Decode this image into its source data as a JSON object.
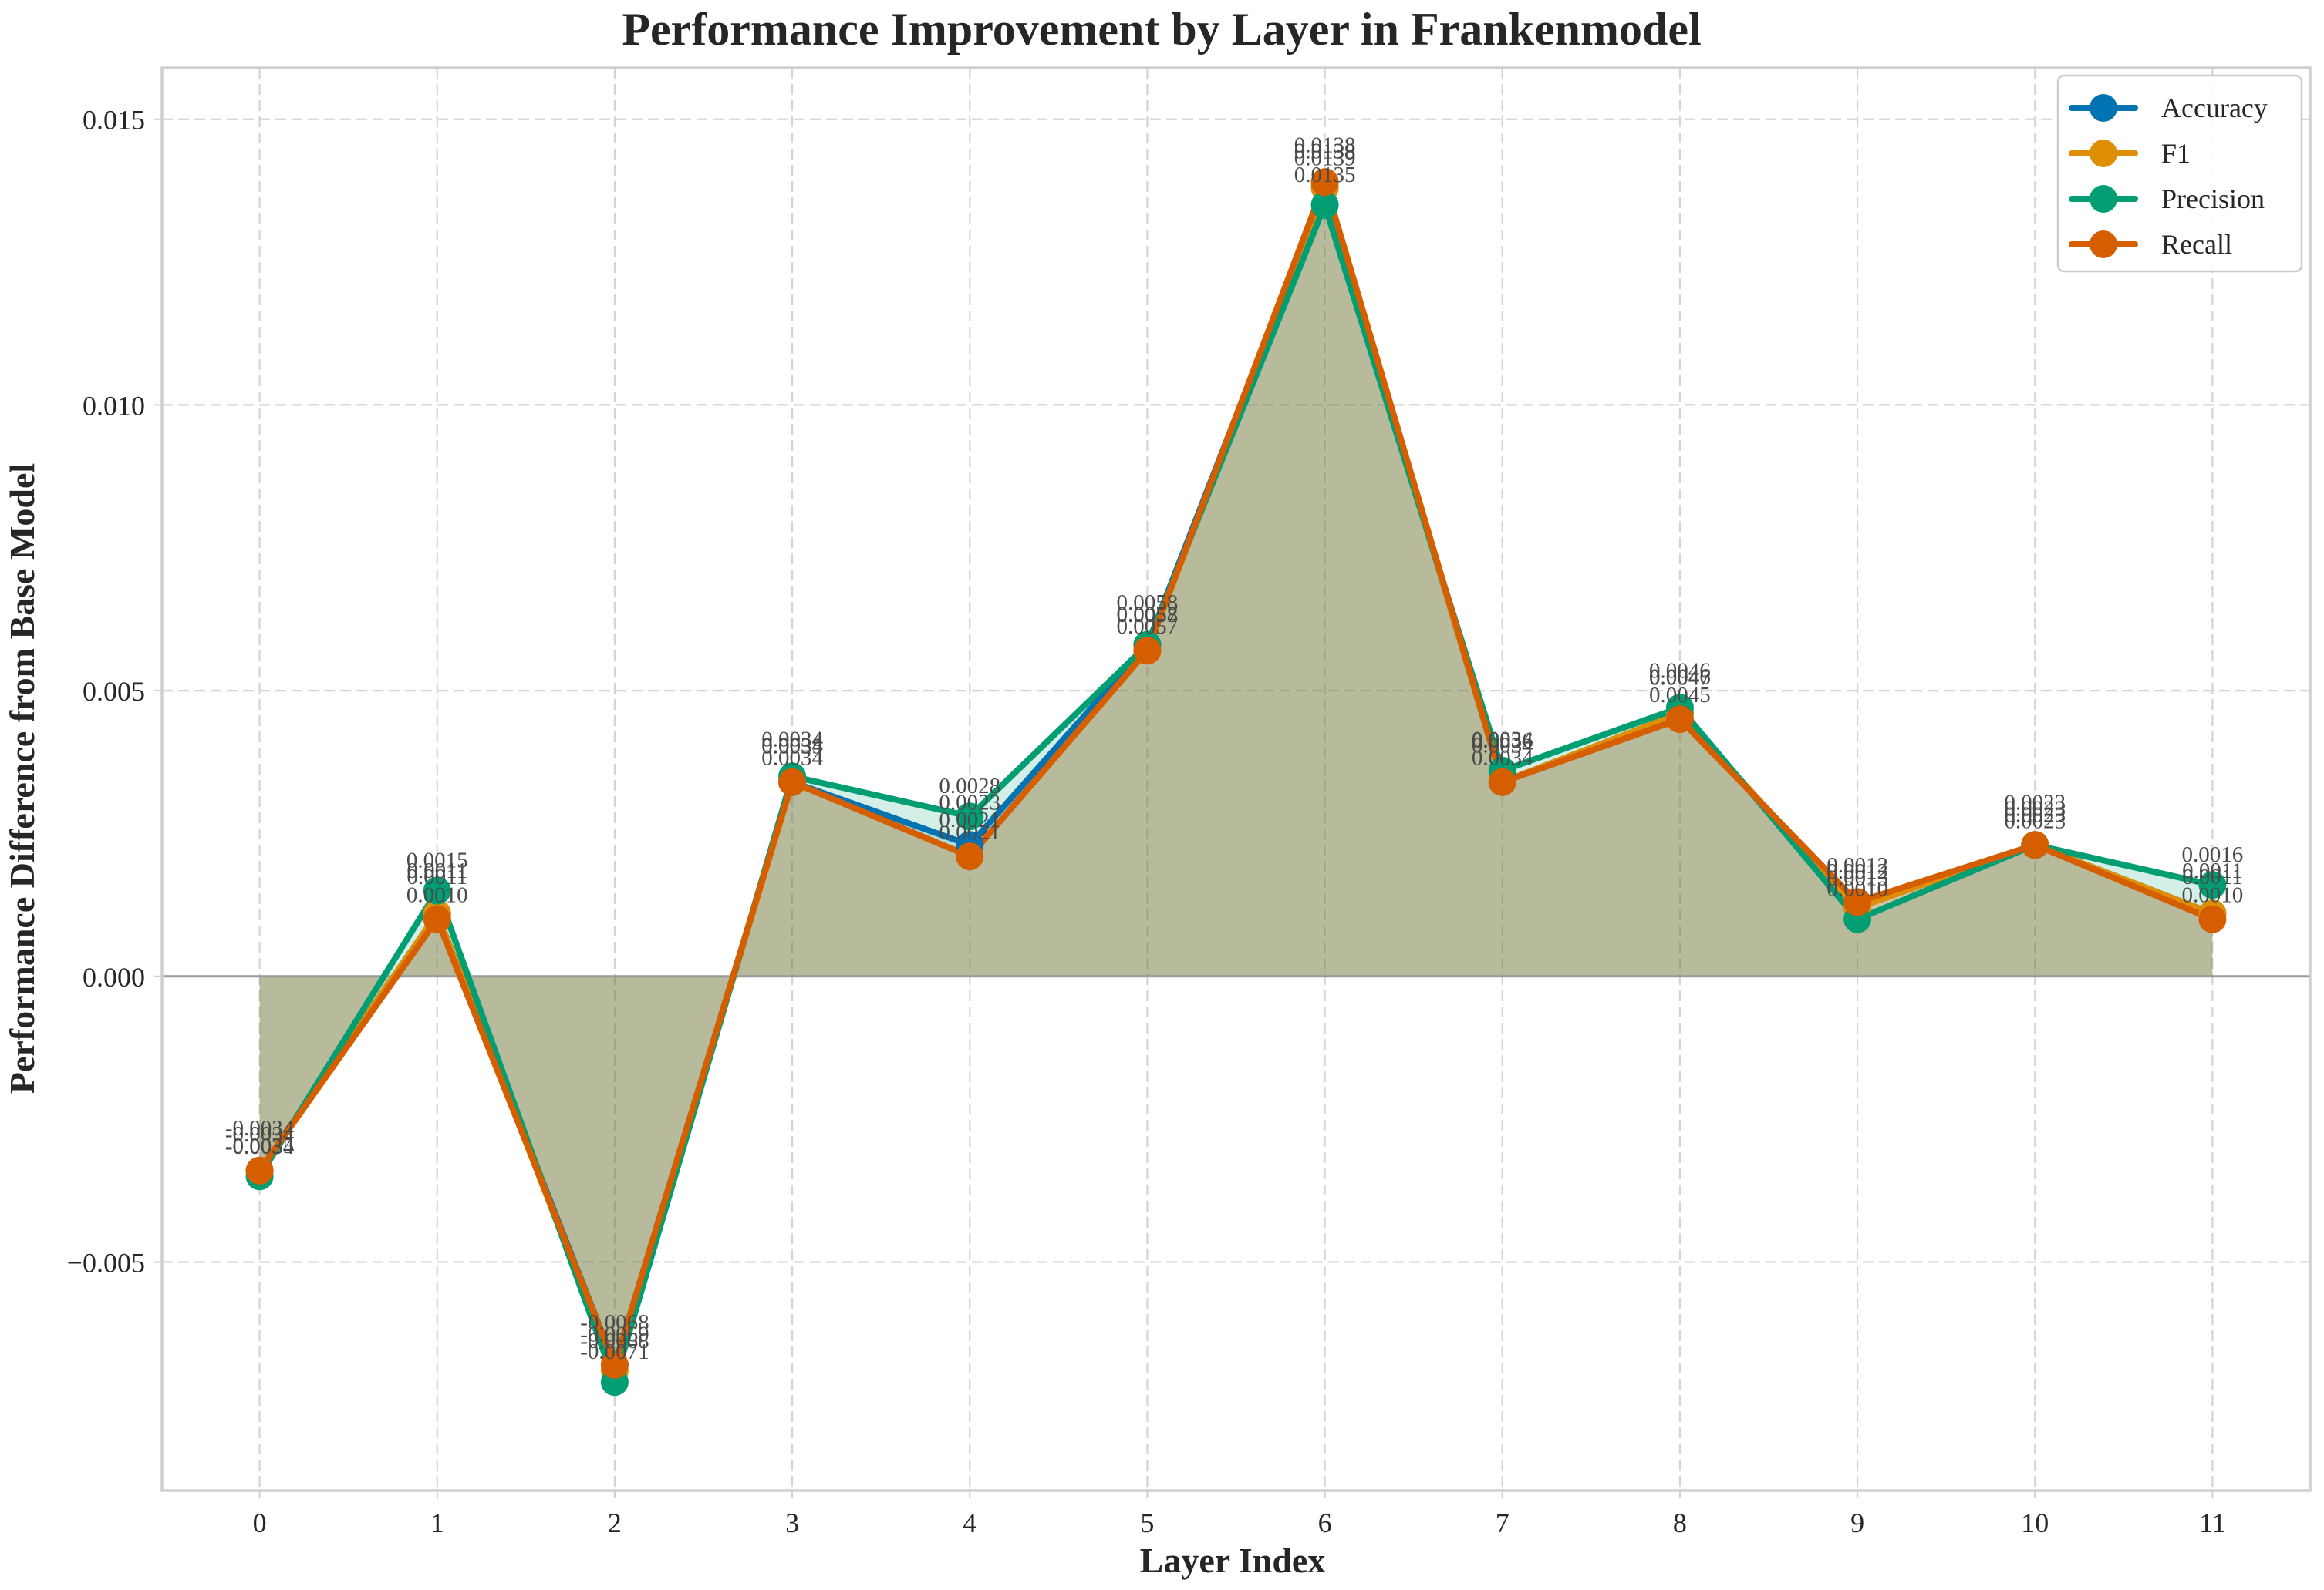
{
  "chart_data": {
    "type": "line",
    "title": "Performance Improvement by Layer in Frankenmodel",
    "xlabel": "Layer Index",
    "ylabel": "Performance Difference from Base Model",
    "x": [
      0,
      1,
      2,
      3,
      4,
      5,
      6,
      7,
      8,
      9,
      10,
      11
    ],
    "x_tick_labels": [
      "0",
      "1",
      "2",
      "3",
      "4",
      "5",
      "6",
      "7",
      "8",
      "9",
      "10",
      "11"
    ],
    "y_ticks": [
      -0.005,
      0.0,
      0.005,
      0.01,
      0.015
    ],
    "y_tick_labels": [
      "−0.005",
      "0.000",
      "0.005",
      "0.010",
      "0.015"
    ],
    "xlim": [
      -0.55,
      11.55
    ],
    "ylim": [
      -0.009,
      0.0159
    ],
    "grid": true,
    "legend_position": "top-right",
    "baseline": 0,
    "series": [
      {
        "name": "Accuracy",
        "color": "#0173b2",
        "values": [
          -0.0034,
          0.0011,
          -0.0068,
          0.0034,
          0.0023,
          0.0058,
          0.0138,
          0.0034,
          0.0046,
          0.0012,
          0.0023,
          0.0011
        ],
        "labels": [
          "-0.0034",
          "0.0011",
          "-0.0068",
          "0.0034",
          "0.0023",
          "0.0058",
          "0.0138",
          "0.0034",
          "0.0046",
          "0.0012",
          "0.0023",
          "0.0011"
        ]
      },
      {
        "name": "F1",
        "color": "#de8f05",
        "values": [
          -0.0034,
          0.0011,
          -0.0069,
          0.0034,
          0.0021,
          0.0057,
          0.0138,
          0.0034,
          0.0046,
          0.0012,
          0.0023,
          0.0011
        ],
        "labels": [
          "-0.0034",
          "0.0011",
          "-0.0069",
          "0.0034",
          "0.0021",
          "0.0057",
          "0.0138",
          "0.0034",
          "0.0046",
          "0.0012",
          "0.0023",
          "0.0011"
        ]
      },
      {
        "name": "Precision",
        "color": "#029e73",
        "values": [
          -0.0035,
          0.0015,
          -0.0071,
          0.0035,
          0.0028,
          0.0058,
          0.0135,
          0.0036,
          0.0047,
          0.001,
          0.0023,
          0.0016
        ],
        "labels": [
          "-0.0035",
          "0.0015",
          "-0.0071",
          "0.0035",
          "0.0028",
          "0.0058",
          "0.0135",
          "0.0036",
          "0.0047",
          "0.0010",
          "0.0023",
          "0.0016"
        ]
      },
      {
        "name": "Recall",
        "color": "#d55e00",
        "values": [
          -0.0034,
          0.001,
          -0.0068,
          0.0034,
          0.0021,
          0.0057,
          0.0139,
          0.0034,
          0.0045,
          0.0013,
          0.0023,
          0.001
        ],
        "labels": [
          "-0.0034",
          "0.0010",
          "-0.0068",
          "0.0034",
          "0.0021",
          "0.0057",
          "0.0139",
          "0.0034",
          "0.0045",
          "0.0013",
          "0.0023",
          "0.0010"
        ]
      }
    ]
  }
}
